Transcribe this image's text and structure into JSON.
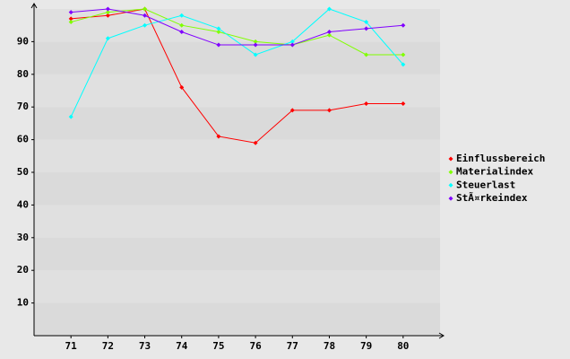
{
  "chart_data": {
    "type": "line",
    "categories": [
      "71",
      "72",
      "73",
      "74",
      "75",
      "76",
      "77",
      "78",
      "79",
      "80"
    ],
    "series": [
      {
        "name": "Einflussbereich",
        "color": "#ff0000",
        "values": [
          97,
          98,
          100,
          76,
          61,
          59,
          69,
          69,
          71,
          71
        ]
      },
      {
        "name": "Materialindex",
        "color": "#80ff00",
        "values": [
          96,
          99,
          100,
          95,
          93,
          90,
          89,
          92,
          86,
          86
        ]
      },
      {
        "name": "Steuerlast",
        "color": "#00ffff",
        "values": [
          67,
          91,
          95,
          98,
          94,
          86,
          90,
          100,
          96,
          83
        ]
      },
      {
        "name": "StÃ¤rkeindex",
        "color": "#8000ff",
        "values": [
          99,
          100,
          98,
          93,
          89,
          89,
          89,
          93,
          94,
          95
        ]
      }
    ],
    "ylim": [
      0,
      100
    ],
    "yticks": [
      10,
      20,
      30,
      40,
      50,
      60,
      70,
      80,
      90
    ],
    "grid": true,
    "legend": "right"
  }
}
